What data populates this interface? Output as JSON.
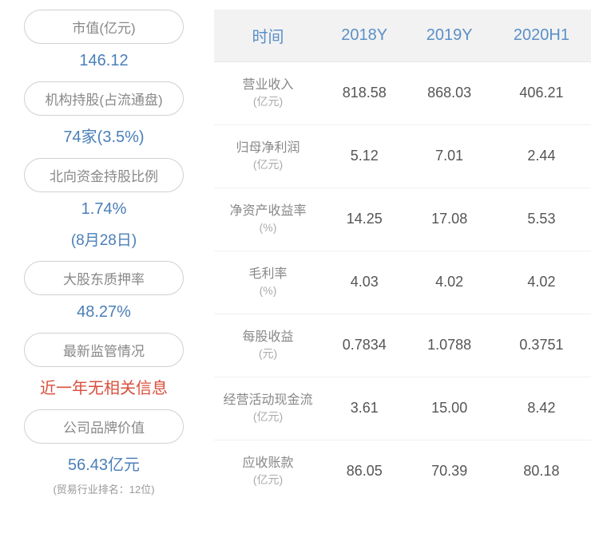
{
  "left": {
    "items": [
      {
        "label": "市值(亿元)",
        "value": "146.12",
        "sub": null,
        "note": null,
        "color": "blue"
      },
      {
        "label": "机构持股(占流通盘)",
        "value": "74家(3.5%)",
        "sub": null,
        "note": null,
        "color": "blue"
      },
      {
        "label": "北向资金持股比例",
        "value": "1.74%",
        "sub": "(8月28日)",
        "note": null,
        "color": "blue"
      },
      {
        "label": "大股东质押率",
        "value": "48.27%",
        "sub": null,
        "note": null,
        "color": "blue"
      },
      {
        "label": "最新监管情况",
        "value": "近一年无相关信息",
        "sub": null,
        "note": null,
        "color": "red"
      },
      {
        "label": "公司品牌价值",
        "value": "56.43亿元",
        "sub": null,
        "note": "(贸易行业排名：12位)",
        "color": "blue"
      }
    ]
  },
  "table": {
    "header": {
      "col0": "时间",
      "col1": "2018Y",
      "col2": "2019Y",
      "col3": "2020H1"
    },
    "rows": [
      {
        "metric": "营业收入",
        "unit": "(亿元)",
        "v1": "818.58",
        "v2": "868.03",
        "v3": "406.21"
      },
      {
        "metric": "归母净利润",
        "unit": "(亿元)",
        "v1": "5.12",
        "v2": "7.01",
        "v3": "2.44"
      },
      {
        "metric": "净资产收益率",
        "unit": "(%)",
        "v1": "14.25",
        "v2": "17.08",
        "v3": "5.53"
      },
      {
        "metric": "毛利率",
        "unit": "(%)",
        "v1": "4.03",
        "v2": "4.02",
        "v3": "4.02"
      },
      {
        "metric": "每股收益",
        "unit": "(元)",
        "v1": "0.7834",
        "v2": "1.0788",
        "v3": "0.3751"
      },
      {
        "metric": "经营活动现金流",
        "unit": "(亿元)",
        "v1": "3.61",
        "v2": "15.00",
        "v3": "8.42"
      },
      {
        "metric": "应收账款",
        "unit": "(亿元)",
        "v1": "86.05",
        "v2": "70.39",
        "v3": "80.18"
      }
    ]
  },
  "colors": {
    "header_bg": "#f2f2f2",
    "header_text": "#5a8fc8",
    "value_blue": "#4a7fb8",
    "value_red": "#da4f3c",
    "pill_border": "#d0d0d0",
    "pill_text": "#888888",
    "cell_text": "#555555",
    "row_border": "#f0f0f0"
  }
}
